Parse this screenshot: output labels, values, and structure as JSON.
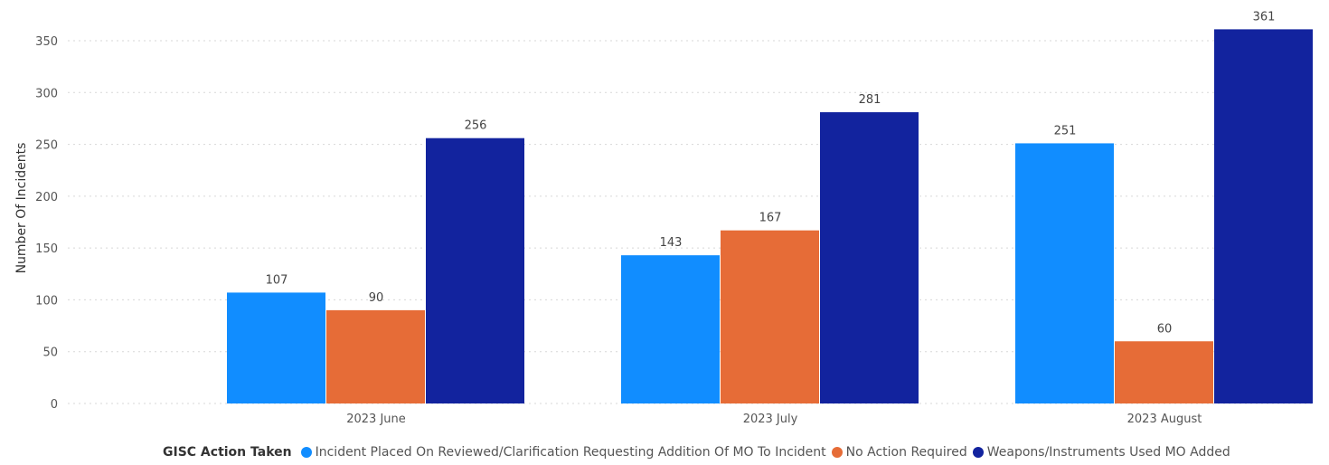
{
  "chart_data": {
    "type": "bar",
    "categories": [
      "2023 June",
      "2023 July",
      "2023 August"
    ],
    "series": [
      {
        "name": "Incident Placed On Reviewed/Clarification Requesting Addition Of MO To Incident",
        "values": [
          107,
          143,
          251
        ],
        "color": "#118dff"
      },
      {
        "name": "No Action Required",
        "values": [
          90,
          167,
          60
        ],
        "color": "#e66c37"
      },
      {
        "name": "Weapons/Instruments Used MO Added",
        "values": [
          256,
          281,
          361
        ],
        "color": "#12239e"
      }
    ],
    "title": "",
    "xlabel": "",
    "ylabel": "Number Of Incidents",
    "ylim": [
      0,
      350
    ],
    "yticks": [
      0,
      50,
      100,
      150,
      200,
      250,
      300,
      350
    ],
    "grid": true,
    "data_labels": true,
    "legend": {
      "title": "GISC Action Taken",
      "position": "bottom"
    }
  }
}
